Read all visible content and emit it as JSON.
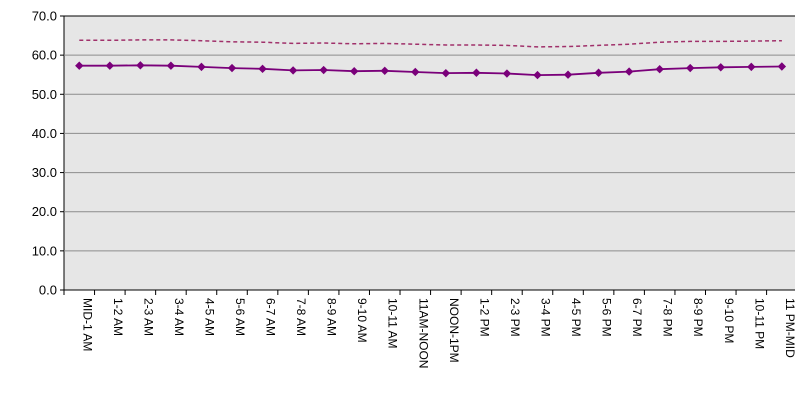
{
  "chart_data": {
    "type": "line",
    "title": "",
    "xlabel": "",
    "ylabel": "",
    "ylim": [
      0,
      70
    ],
    "y_ticks": [
      "0.0",
      "10.0",
      "20.0",
      "30.0",
      "40.0",
      "50.0",
      "60.0",
      "70.0"
    ],
    "grid": "horizontal",
    "categories": [
      "MID-1 AM",
      "1-2 AM",
      "2-3 AM",
      "3-4 AM",
      "4-5 AM",
      "5-6 AM",
      "6-7 AM",
      "7-8 AM",
      "8-9 AM",
      "9-10 AM",
      "10-11 AM",
      "11AM-NOON",
      "NOON-1PM",
      "1-2 PM",
      "2-3 PM",
      "3-4 PM",
      "4-5 PM",
      "5-6 PM",
      "6-7 PM",
      "7-8 PM",
      "8-9 PM",
      "9-10 PM",
      "10-11 PM",
      "11 PM-MID"
    ],
    "series": [
      {
        "style": "dashed",
        "color": "#A0306A",
        "values": [
          63.8,
          63.8,
          63.9,
          63.9,
          63.7,
          63.4,
          63.3,
          63.0,
          63.1,
          62.9,
          63.0,
          62.8,
          62.6,
          62.6,
          62.5,
          62.1,
          62.2,
          62.5,
          62.8,
          63.3,
          63.5,
          63.5,
          63.6,
          63.7
        ]
      },
      {
        "style": "solid-diamond",
        "color": "#7A007A",
        "values": [
          57.3,
          57.3,
          57.4,
          57.3,
          57.0,
          56.7,
          56.5,
          56.1,
          56.2,
          55.9,
          56.0,
          55.7,
          55.4,
          55.5,
          55.3,
          54.9,
          55.0,
          55.5,
          55.8,
          56.4,
          56.7,
          56.9,
          57.0,
          57.1
        ]
      }
    ]
  }
}
